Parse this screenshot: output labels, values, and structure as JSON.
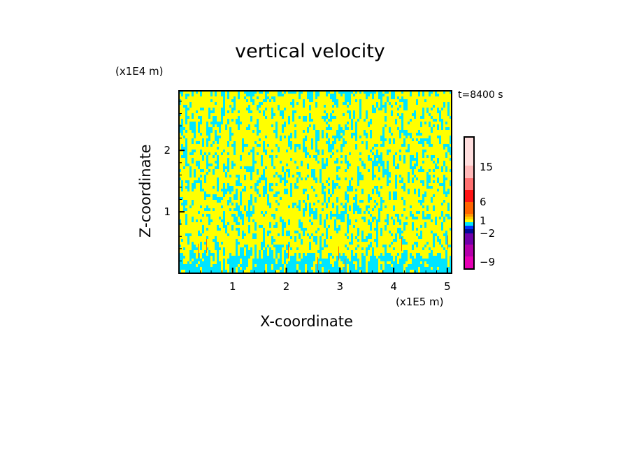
{
  "chart_data": {
    "type": "heatmap",
    "title": "vertical velocity",
    "xlabel": "X-coordinate",
    "ylabel": "Z-coordinate",
    "x_unit": "(x1E5 m)",
    "y_unit": "(x1E4 m)",
    "annotation": "t=8400 s",
    "xlim": [
      0,
      5.08
    ],
    "ylim": [
      0,
      2.97
    ],
    "x_ticks": [
      "1",
      "2",
      "3",
      "4",
      "5"
    ],
    "y_ticks": [
      "1",
      "2"
    ],
    "dominant_colors": {
      "weak_updraft": "#ffff00",
      "weak_downdraft": "#00e5ff",
      "strong_updraft": "#ff6a00"
    },
    "colorbar": {
      "colors_top_to_bottom": [
        "#ffdede",
        "#ffb8b8",
        "#ff7070",
        "#ff1414",
        "#ff6400",
        "#ff9600",
        "#ffcc00",
        "#ffff00",
        "#00e5ff",
        "#0032ff",
        "#000a96",
        "#7000aa",
        "#b400aa",
        "#e600b4"
      ],
      "tick_labels": [
        "15",
        "6",
        "1",
        "−2",
        "−9"
      ]
    }
  }
}
